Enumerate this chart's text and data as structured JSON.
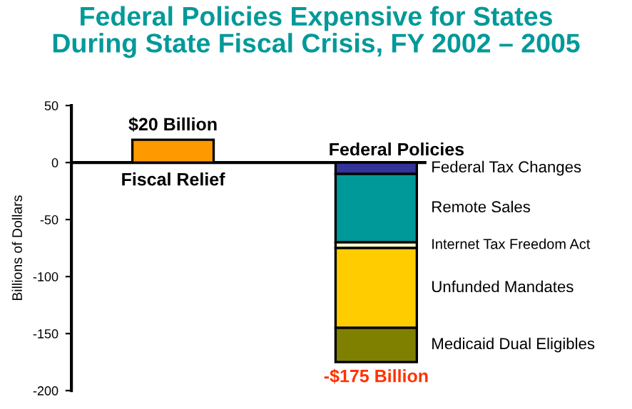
{
  "chart_data": {
    "type": "bar",
    "title": "Federal Policies Expensive for States\nDuring State Fiscal Crisis, FY 2002 – 2005",
    "ylabel": "Billions of Dollars",
    "categories": [
      "Fiscal Relief",
      "Federal Policies"
    ],
    "stacked": true,
    "ylim": [
      -200,
      50
    ],
    "yticks": [
      -200,
      -150,
      -100,
      -50,
      0,
      50
    ],
    "legend": false,
    "totals": [
      "$20 Billion",
      "-$175 Billion"
    ],
    "series": [
      {
        "color": "#ff9900",
        "values": [
          20,
          null
        ]
      },
      {
        "name": "Federal Tax Changes",
        "color": "#333399",
        "values": [
          null,
          -10
        ]
      },
      {
        "name": "Remote Sales",
        "color": "#009999",
        "values": [
          null,
          -60
        ]
      },
      {
        "name": "Internet Tax Freedom Act",
        "color": "#ffffcc",
        "values": [
          null,
          -5
        ]
      },
      {
        "name": "Unfunded Mandates",
        "color": "#ffcc00",
        "values": [
          null,
          -70
        ]
      },
      {
        "name": "Medicaid Dual Eligibles",
        "color": "#808000",
        "values": [
          null,
          -30
        ]
      }
    ]
  }
}
